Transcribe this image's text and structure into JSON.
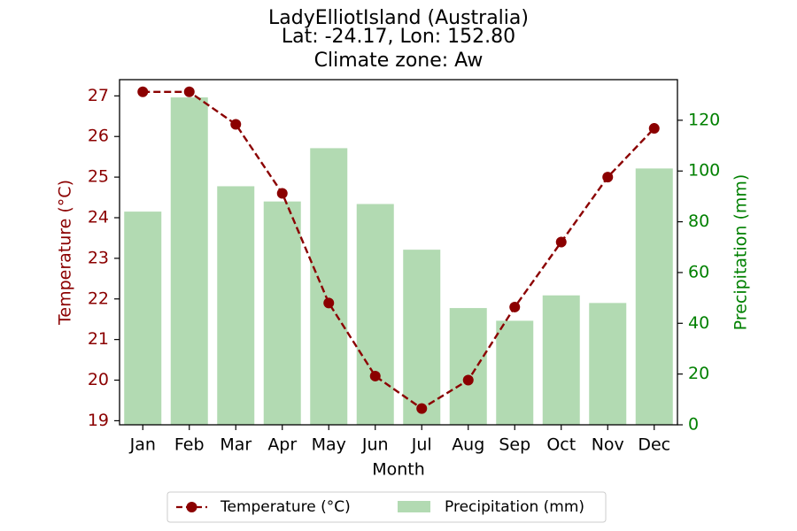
{
  "chart_data": {
    "type": "bar+line",
    "title_lines": [
      "LadyElliotIsland (Australia)",
      "Lat: -24.17, Lon: 152.80",
      "Climate zone: Aw"
    ],
    "xlabel": "Month",
    "categories": [
      "Jan",
      "Feb",
      "Mar",
      "Apr",
      "May",
      "Jun",
      "Jul",
      "Aug",
      "Sep",
      "Oct",
      "Nov",
      "Dec"
    ],
    "left_axis": {
      "label": "Temperature (°C)",
      "ylim": [
        18.9,
        27.4
      ],
      "ticks": [
        19,
        20,
        21,
        22,
        23,
        24,
        25,
        26,
        27
      ],
      "color": "#8b0000"
    },
    "right_axis": {
      "label": "Precipitation (mm)",
      "ylim": [
        0,
        136
      ],
      "ticks": [
        0,
        20,
        40,
        60,
        80,
        100,
        120
      ],
      "color": "#008000"
    },
    "series": [
      {
        "name": "Temperature (°C)",
        "type": "line",
        "axis": "left",
        "style": "dashed-with-circle-markers",
        "color": "#8b0000",
        "values": [
          27.1,
          27.1,
          26.3,
          24.6,
          21.9,
          20.1,
          19.3,
          20.0,
          21.8,
          23.4,
          25.0,
          26.2
        ]
      },
      {
        "name": "Precipitation (mm)",
        "type": "bar",
        "axis": "right",
        "color": "#b2dab2",
        "values": [
          84,
          129,
          94,
          88,
          109,
          87,
          69,
          46,
          41,
          51,
          48,
          101
        ]
      }
    ],
    "legend": {
      "position": "bottom-center",
      "entries": [
        "Temperature (°C)",
        "Precipitation (mm)"
      ]
    },
    "grid": false
  }
}
